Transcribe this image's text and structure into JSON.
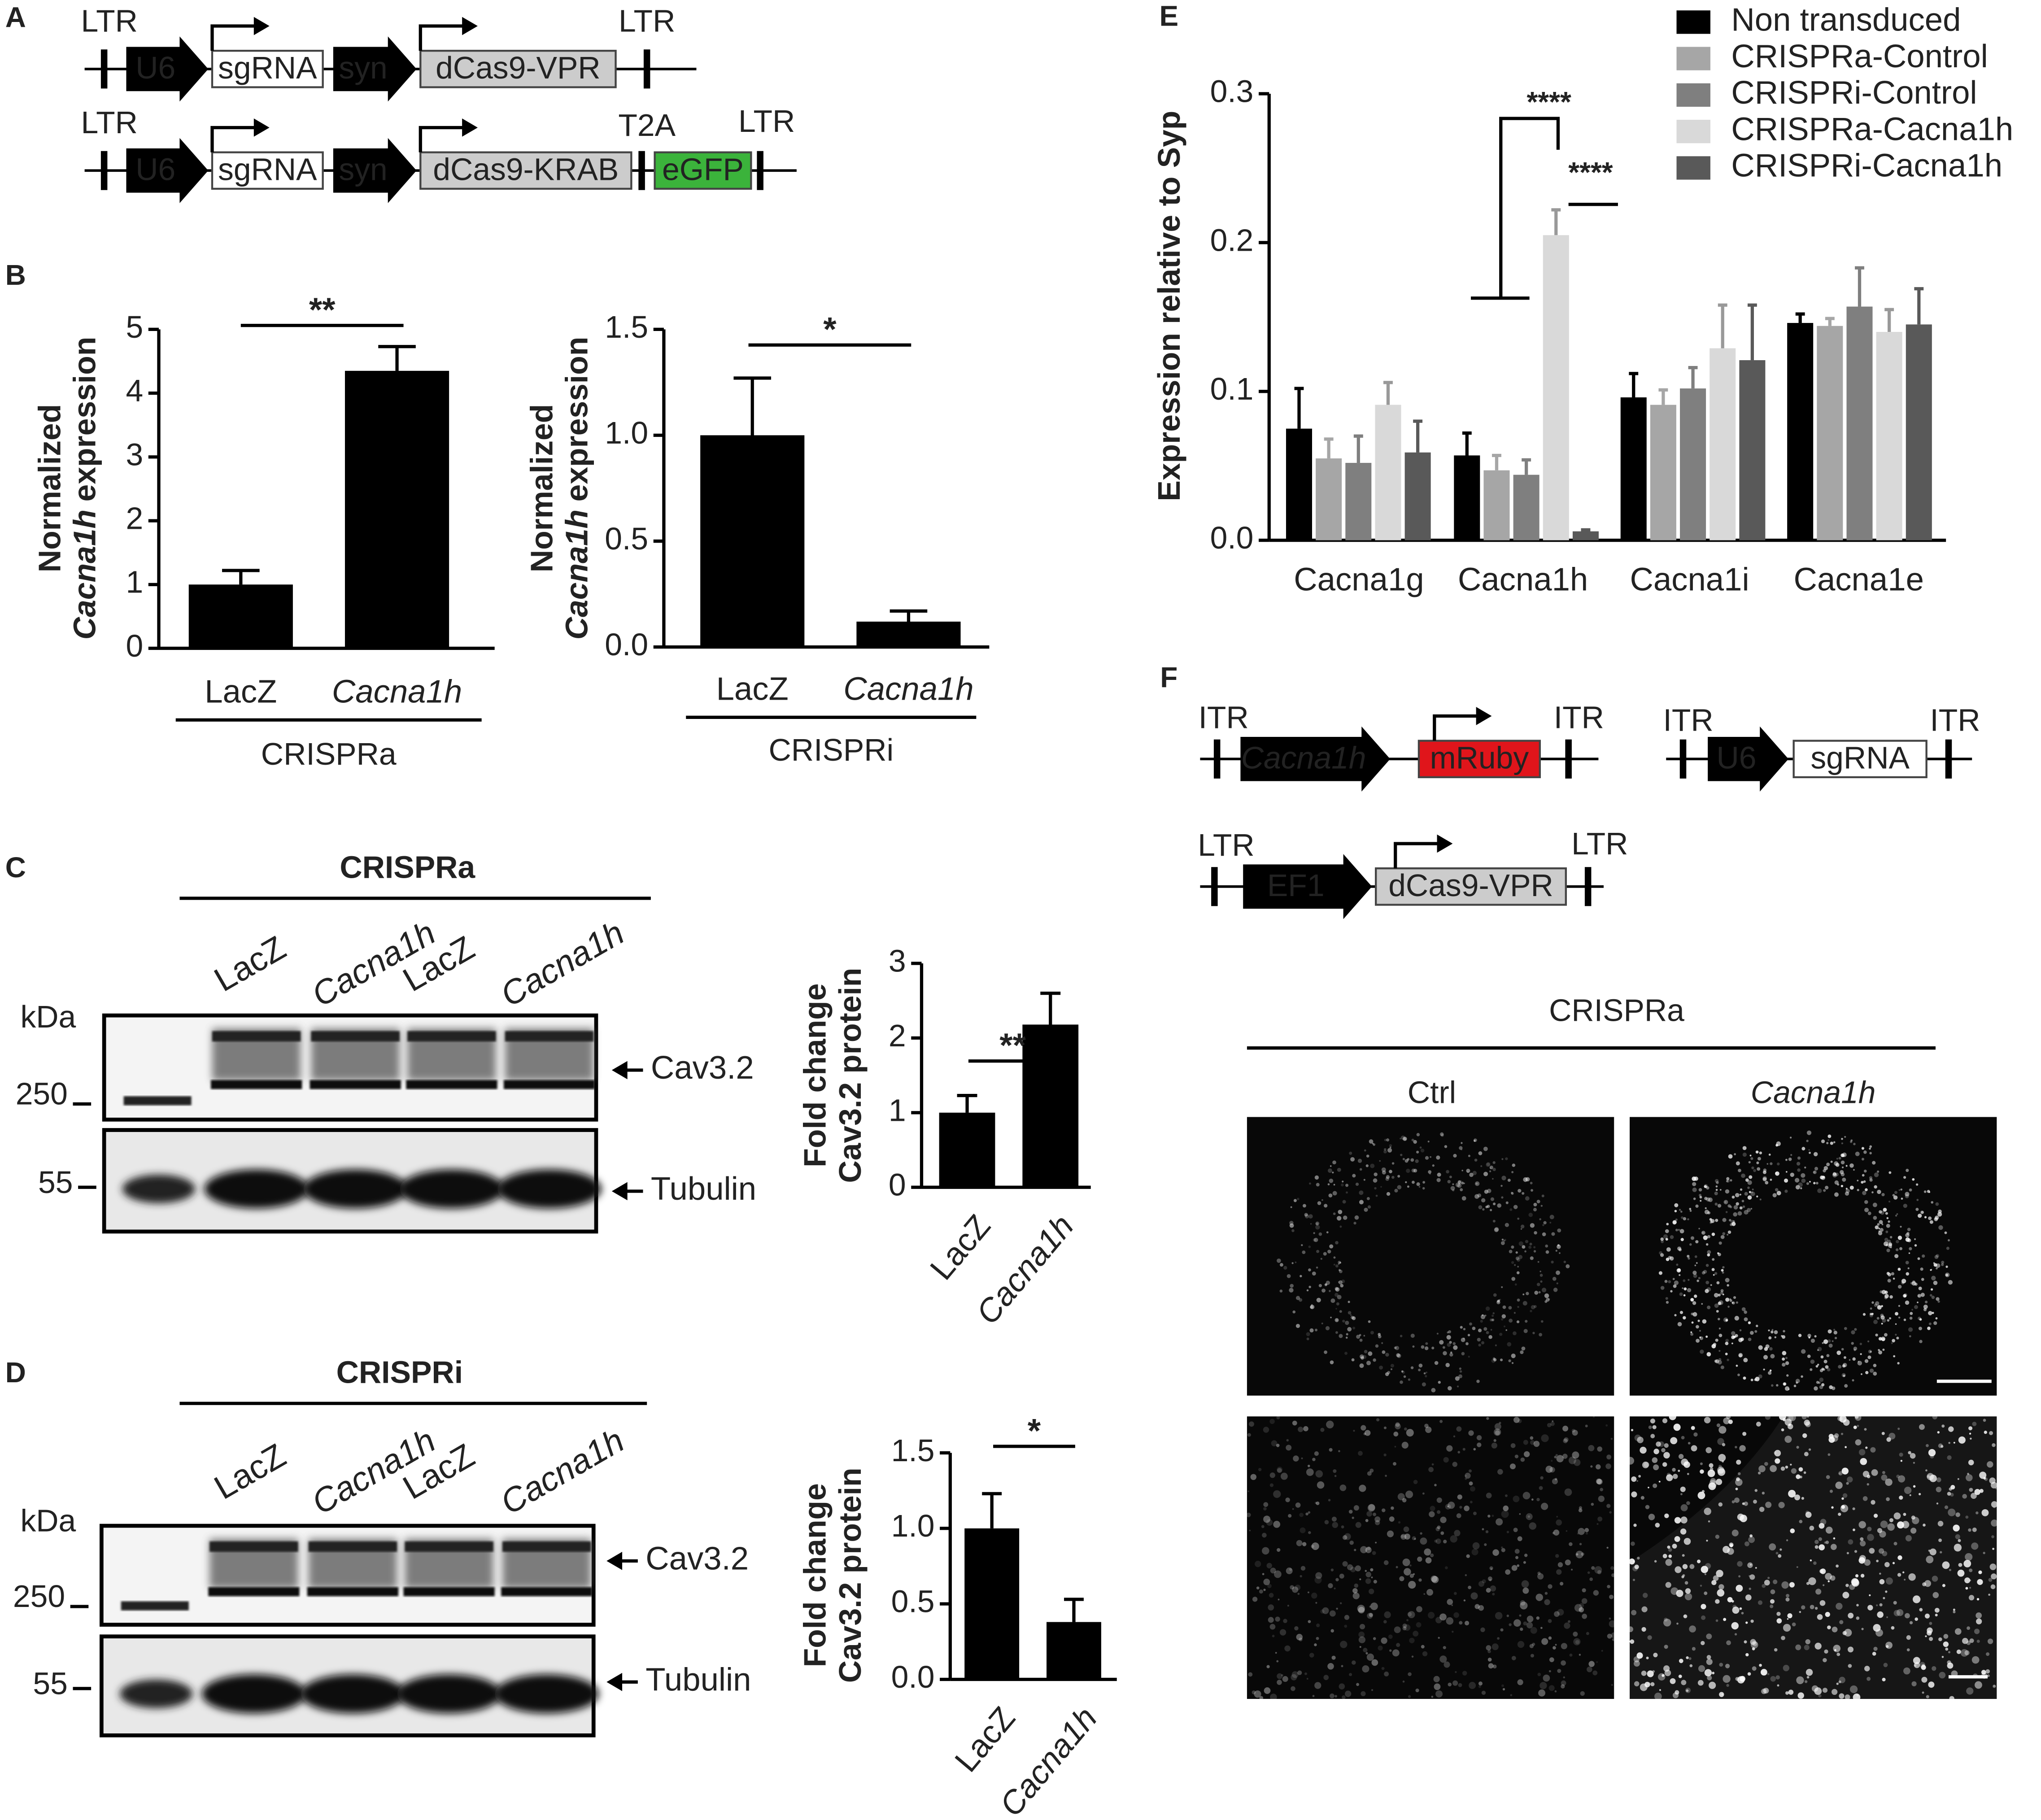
{
  "panel_a": {
    "label": "A",
    "rows": [
      {
        "left": "LTR",
        "promoter": "U6",
        "guide": "sgRNA",
        "linker": "syn",
        "cas": "dCas9-VPR",
        "right": "LTR"
      },
      {
        "left": "LTR",
        "promoter": "U6",
        "guide": "sgRNA",
        "linker": "syn",
        "cas": "dCas9-KRAB",
        "tag": "T2A",
        "reporter": "eGFP",
        "right": "LTR"
      }
    ]
  },
  "chart_data": [
    {
      "type": "bar",
      "label": "B",
      "ylabel": [
        "Normalized",
        "Cacna1h",
        "expression"
      ],
      "categories": [
        "LacZ",
        "Cacna1h"
      ],
      "values": [
        1,
        4.35
      ],
      "errors": [
        0.22,
        0.38
      ],
      "color": "#000000",
      "ylim": [
        0,
        5
      ],
      "yticks": [
        0,
        1,
        2,
        3,
        4,
        5
      ],
      "group": "CRISPRa",
      "significance": "**"
    },
    {
      "type": "bar",
      "ylabel": [
        "Normalized",
        "Cacna1h",
        "expression"
      ],
      "categories": [
        "LacZ",
        "Cacna1h"
      ],
      "values": [
        1,
        0.12
      ],
      "errors": [
        0.27,
        0.05
      ],
      "color": "#000000",
      "ylim": [
        0,
        1.5
      ],
      "yticks": [
        {
          "value": 0,
          "label": "0.0"
        },
        {
          "value": 0.5,
          "label": "0.5"
        },
        {
          "value": 1,
          "label": "1.0"
        },
        {
          "value": 1.5,
          "label": "1.5"
        }
      ],
      "group": "CRISPRi",
      "significance": "*"
    },
    {
      "type": "bar",
      "ylabel": [
        "Fold change",
        "Cav3.2 protein"
      ],
      "categories": [
        "LacZ",
        "Cacna1h"
      ],
      "values": [
        1,
        2.18
      ],
      "errors": [
        0.23,
        0.42
      ],
      "color": "#000000",
      "ylim": [
        0,
        3
      ],
      "yticks": [
        0,
        1,
        2,
        3
      ],
      "significance": "**"
    },
    {
      "type": "bar",
      "ylabel": [
        "Fold change",
        "Cav3.2 protein"
      ],
      "categories": [
        "LacZ",
        "Cacna1h"
      ],
      "values": [
        1,
        0.38
      ],
      "errors": [
        0.23,
        0.15
      ],
      "color": "#000000",
      "ylim": [
        0,
        1.5
      ],
      "yticks": [
        {
          "value": 0,
          "label": "0.0"
        },
        {
          "value": 0.5,
          "label": "0.5"
        },
        {
          "value": 1,
          "label": "1.0"
        },
        {
          "value": 1.5,
          "label": "1.5"
        }
      ],
      "significance": "*"
    },
    {
      "type": "grouped-bar",
      "label": "E",
      "ylabel": "Expression relative to Syp",
      "categories": [
        "Cacna1g",
        "Cacna1h",
        "Cacna1i",
        "Cacna1e"
      ],
      "legend": "upper right",
      "series": [
        {
          "name": "Non transduced",
          "color": "#000000",
          "values": [
            0.075,
            0.057,
            0.096,
            0.146
          ],
          "errors": [
            0.027,
            0.015,
            0.016,
            0.006
          ]
        },
        {
          "name": "CRISPRa-Control",
          "color": "#a6a6a6",
          "values": [
            0.055,
            0.047,
            0.091,
            0.144
          ],
          "errors": [
            0.013,
            0.01,
            0.01,
            0.005
          ]
        },
        {
          "name": "CRISPRi-Control",
          "color": "#7f7f7f",
          "values": [
            0.052,
            0.044,
            0.102,
            0.157
          ],
          "errors": [
            0.018,
            0.01,
            0.014,
            0.026
          ]
        },
        {
          "name": "CRISPRa-Cacna1h",
          "color": "#d9d9d9",
          "values": [
            0.091,
            0.205,
            0.129,
            0.14
          ],
          "errors": [
            0.015,
            0.017,
            0.029,
            0.015
          ]
        },
        {
          "name": "CRISPRi-Cacna1h",
          "color": "#595959",
          "values": [
            0.059,
            0.006,
            0.121,
            0.145
          ],
          "errors": [
            0.021,
            0.001,
            0.037,
            0.024
          ]
        }
      ],
      "ylim": [
        0,
        0.3
      ],
      "yticks": [
        {
          "value": 0,
          "label": "0.0"
        },
        {
          "value": 0.1,
          "label": "0.1"
        },
        {
          "value": 0.2,
          "label": "0.2"
        },
        {
          "value": 0.3,
          "label": "0.3"
        }
      ],
      "annotations": [
        "****",
        "****"
      ]
    }
  ],
  "blot_c": {
    "label": "C",
    "group": "CRISPRa",
    "lanes": [
      "LacZ",
      "Cacna1h",
      "LacZ",
      "Cacna1h"
    ],
    "unit": "kDa",
    "markers": [
      "250",
      "55"
    ],
    "proteins": [
      "Cav3.2",
      "Tubulin"
    ]
  },
  "blot_d": {
    "label": "D",
    "group": "CRISPRi",
    "lanes": [
      "LacZ",
      "Cacna1h",
      "LacZ",
      "Cacna1h"
    ],
    "unit": "kDa",
    "markers": [
      "250",
      "55"
    ],
    "proteins": [
      "Cav3.2",
      "Tubulin"
    ]
  },
  "panel_f": {
    "label": "F",
    "aav1": {
      "left": "ITR",
      "gene": "Cacna1h",
      "reporter": "mRuby",
      "right": "ITR"
    },
    "aav2": {
      "left": "ITR",
      "promoter": "U6",
      "guide": "sgRNA",
      "right": "ITR"
    },
    "lenti": {
      "left": "LTR",
      "promoter": "EF1",
      "cas": "dCas9-VPR",
      "right": "LTR"
    },
    "group": "CRISPRa",
    "conditions": [
      "Ctrl",
      "Cacna1h"
    ]
  }
}
